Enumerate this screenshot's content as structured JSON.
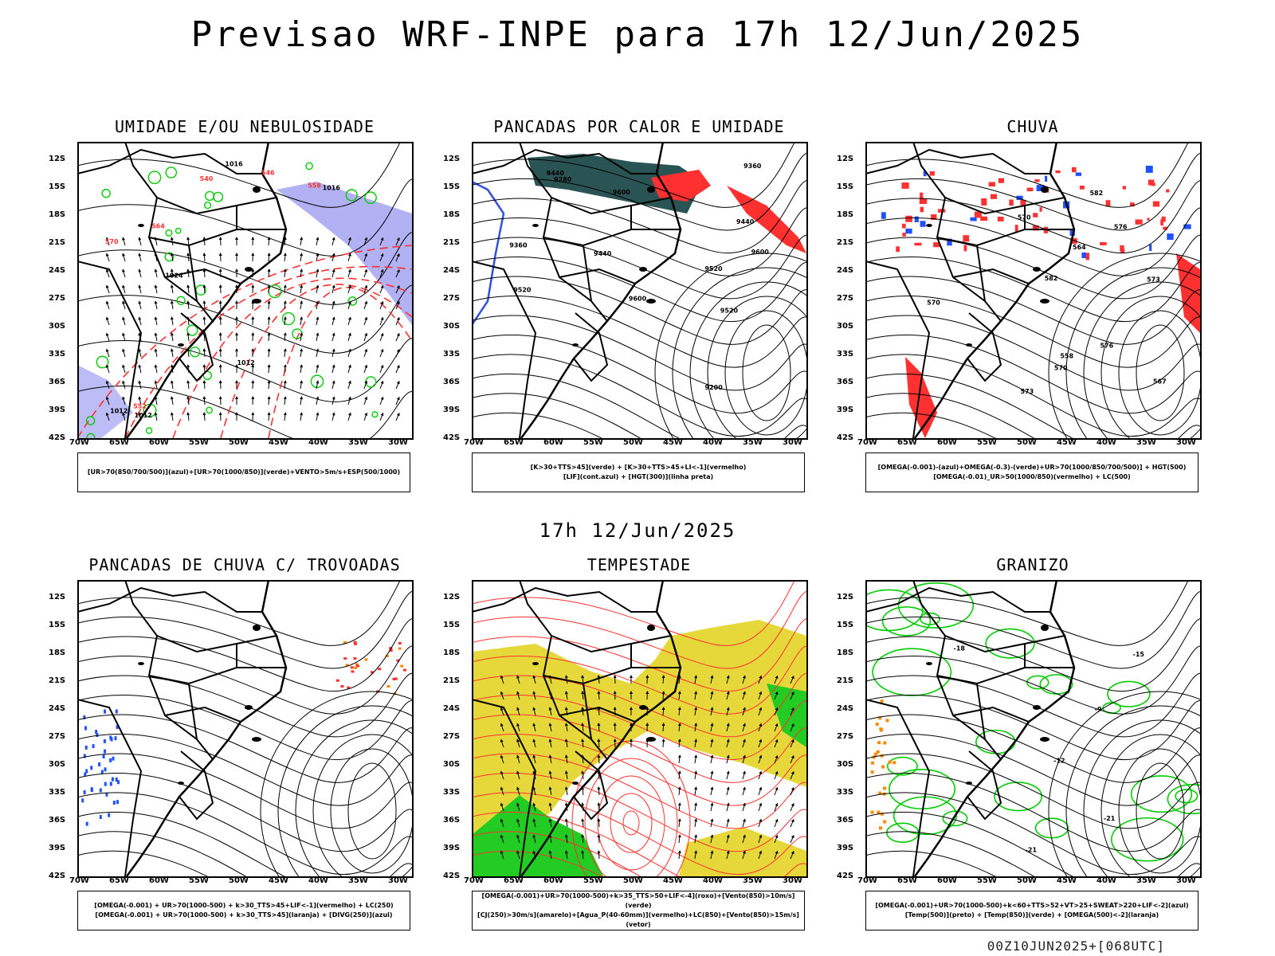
{
  "title": "Previsao WRF-INPE  para 17h 12/Jun/2025",
  "mid_title": "17h 12/Jun/2025",
  "footer": "00Z10JUN2025+[068UTC]",
  "axes": {
    "lat_labels": [
      "12S",
      "15S",
      "18S",
      "21S",
      "24S",
      "27S",
      "30S",
      "33S",
      "36S",
      "39S",
      "42S"
    ],
    "lon_labels": [
      "70W",
      "65W",
      "60W",
      "55W",
      "50W",
      "45W",
      "40W",
      "35W",
      "30W"
    ]
  },
  "panels": [
    {
      "title": "UMIDADE E/OU NEBULOSIDADE",
      "legend": [
        "[UR>70(850/700/500)](azul)+[UR>70(1000/850)](verde)+VENTO>5m/s+ESP(500/1000)"
      ],
      "contour_labels": [
        "1012",
        "1012",
        "1012",
        "1016",
        "1016",
        "1024",
        "570",
        "564",
        "558",
        "552",
        "546",
        "540"
      ],
      "colors": {
        "primary": "#ff3030",
        "secondary": "#00cc00",
        "fill": "#9090f0"
      }
    },
    {
      "title": "PANCADAS POR CALOR E UMIDADE",
      "legend": [
        "[K>30+TTS>45](verde) + [K>30+TTS>45+LI<-1](vermelho)",
        "[LIF](cont.azul) + [HGT(300)](linha preta)"
      ],
      "contour_labels": [
        "9600",
        "9600",
        "9600",
        "9520",
        "9520",
        "9520",
        "9440",
        "9440",
        "9440",
        "9360",
        "9360",
        "9280",
        "9200"
      ],
      "colors": {
        "primary": "#ff3030",
        "secondary": "#1f4a4a",
        "fill": "#3050e0"
      }
    },
    {
      "title": "CHUVA",
      "legend": [
        "[OMEGA(-0.001)-(azul)+OMEGA(-0.3)-(verde)+UR>70(1000/850/700/500)] + HGT(500)",
        "[OMEGA(-0.01)_UR>50(1000/850)(vermelho) + LC(500)"
      ],
      "contour_labels": [
        "582",
        "582",
        "576",
        "576",
        "573",
        "570",
        "567",
        "564",
        "573",
        "570",
        "558",
        "570"
      ],
      "colors": {
        "primary": "#ff3030",
        "secondary": "#2050ff",
        "fill": "#00aa00"
      }
    },
    {
      "title": "PANCADAS DE CHUVA C/ TROVOADAS",
      "legend": [
        "[OMEGA(-0.001) + UR>70(1000-500) + k>30_TTS>45+LIF<-1](vermelho) + LC(250)",
        "[OMEGA(-0.001) + UR>70(1000-500) + k>30_TTS>45](laranja) + [DIVG(250)](azul)"
      ],
      "contour_labels": [],
      "colors": {
        "primary": "#ff3030",
        "secondary": "#ff8800",
        "fill": "#2050ff"
      }
    },
    {
      "title": "TEMPESTADE",
      "legend": [
        "[OMEGA(-0.001)+UR>70(1000-500)+k>35_TTS>50+LIF<-4](roxo)+[Vento(850)>10m/s](verde)",
        "[CJ(250)>30m/s](amarelo)+[Agua_P(40-60mm)](vermelho)+LC(850)+[Vento(850)>15m/s](vetor)"
      ],
      "contour_labels": [],
      "colors": {
        "primary": "#ff3030",
        "secondary": "#22cc22",
        "fill": "#e6d83a"
      }
    },
    {
      "title": "GRANIZO",
      "legend": [
        "[OMEGA(-0.001)+UR>70(1000-500)+k<60+TTS>52+VT>25+SWEAT>220+LIF<-2](azul)",
        "[Temp(500)](preto) + [Temp(850)](verde) + [OMEGA(500)<-2](laranja)"
      ],
      "contour_labels": [
        "-9",
        "-12",
        "-15",
        "-18",
        "-21",
        "-21"
      ],
      "colors": {
        "primary": "#00cc00",
        "secondary": "#ff8800",
        "fill": "#2050ff"
      }
    }
  ]
}
